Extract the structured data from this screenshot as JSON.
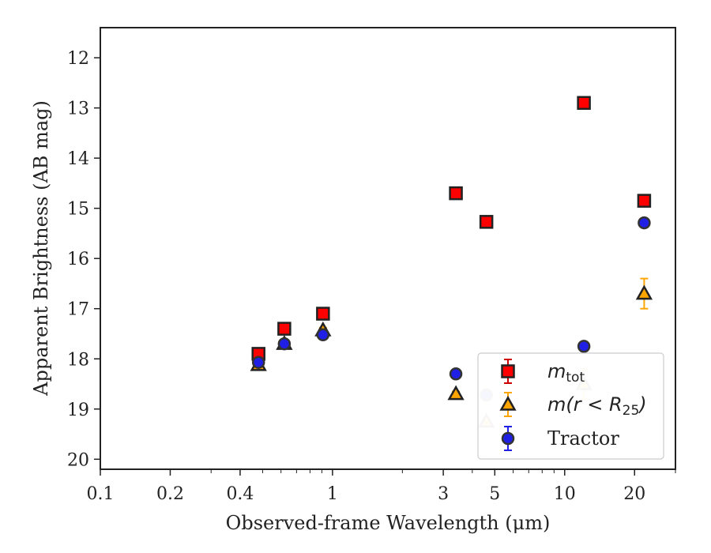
{
  "chart_data": {
    "type": "scatter",
    "title": "",
    "xlabel": "Observed-frame Wavelength (μm)",
    "ylabel": "Apparent Brightness (AB mag)",
    "xscale": "log",
    "xlim": [
      0.1,
      30
    ],
    "ylim": [
      20.2,
      11.4
    ],
    "y_inverted": true,
    "grid": false,
    "xticks": [
      {
        "value": 0.1,
        "label": "0.1"
      },
      {
        "value": 0.2,
        "label": "0.2"
      },
      {
        "value": 0.4,
        "label": "0.4"
      },
      {
        "value": 1,
        "label": "1"
      },
      {
        "value": 3,
        "label": "3"
      },
      {
        "value": 5,
        "label": "5"
      },
      {
        "value": 10,
        "label": "10"
      },
      {
        "value": 20,
        "label": "20"
      }
    ],
    "yticks": [
      {
        "value": 12,
        "label": "12"
      },
      {
        "value": 13,
        "label": "13"
      },
      {
        "value": 14,
        "label": "14"
      },
      {
        "value": 15,
        "label": "15"
      },
      {
        "value": 16,
        "label": "16"
      },
      {
        "value": 17,
        "label": "17"
      },
      {
        "value": 18,
        "label": "18"
      },
      {
        "value": 19,
        "label": "19"
      },
      {
        "value": 20,
        "label": "20"
      }
    ],
    "legend_position": "lower-right",
    "series": [
      {
        "name": "m_tot",
        "marker": "square",
        "color": "#ff0000",
        "edge_color": "#222222",
        "err_color": "#cc0000",
        "points": [
          {
            "x": 0.48,
            "y": 17.9,
            "err": 0.05
          },
          {
            "x": 0.62,
            "y": 17.4,
            "err": 0.05
          },
          {
            "x": 0.91,
            "y": 17.1,
            "err": 0.05
          },
          {
            "x": 3.4,
            "y": 14.7,
            "err": 0.05
          },
          {
            "x": 4.6,
            "y": 15.27,
            "err": 0.05
          },
          {
            "x": 12.1,
            "y": 12.9,
            "err": 0.05
          },
          {
            "x": 22.0,
            "y": 14.85,
            "err": 0.05
          }
        ]
      },
      {
        "name": "m(r<R25)",
        "marker": "triangle",
        "color": "#ffa500",
        "edge_color": "#222222",
        "err_color": "#ffa500",
        "points": [
          {
            "x": 0.48,
            "y": 18.12,
            "err": 0.05,
            "faded": false
          },
          {
            "x": 0.62,
            "y": 17.7,
            "err": 0.05,
            "faded": false
          },
          {
            "x": 0.91,
            "y": 17.43,
            "err": 0.05,
            "faded": false
          },
          {
            "x": 3.4,
            "y": 18.7,
            "err": 0.05,
            "faded": false
          },
          {
            "x": 4.6,
            "y": 19.25,
            "err": 0.06,
            "faded": true
          },
          {
            "x": 12.1,
            "y": 18.5,
            "err": 0.3,
            "faded": true
          },
          {
            "x": 22.0,
            "y": 16.7,
            "err": 0.3,
            "faded": false
          }
        ]
      },
      {
        "name": "Tractor",
        "marker": "circle",
        "color": "#1f1fe6",
        "edge_color": "#333333",
        "err_color": "#1f1fe6",
        "points": [
          {
            "x": 0.48,
            "y": 18.07,
            "err": 0.04,
            "faded": false
          },
          {
            "x": 0.62,
            "y": 17.7,
            "err": 0.04,
            "faded": false
          },
          {
            "x": 0.91,
            "y": 17.52,
            "err": 0.04,
            "faded": false
          },
          {
            "x": 3.4,
            "y": 18.3,
            "err": 0.05,
            "faded": false
          },
          {
            "x": 4.6,
            "y": 18.72,
            "err": 0.05,
            "faded": true
          },
          {
            "x": 12.1,
            "y": 17.75,
            "err": 0.05,
            "faded": false
          },
          {
            "x": 22.0,
            "y": 15.29,
            "err": 0.05,
            "faded": false
          }
        ]
      }
    ]
  }
}
